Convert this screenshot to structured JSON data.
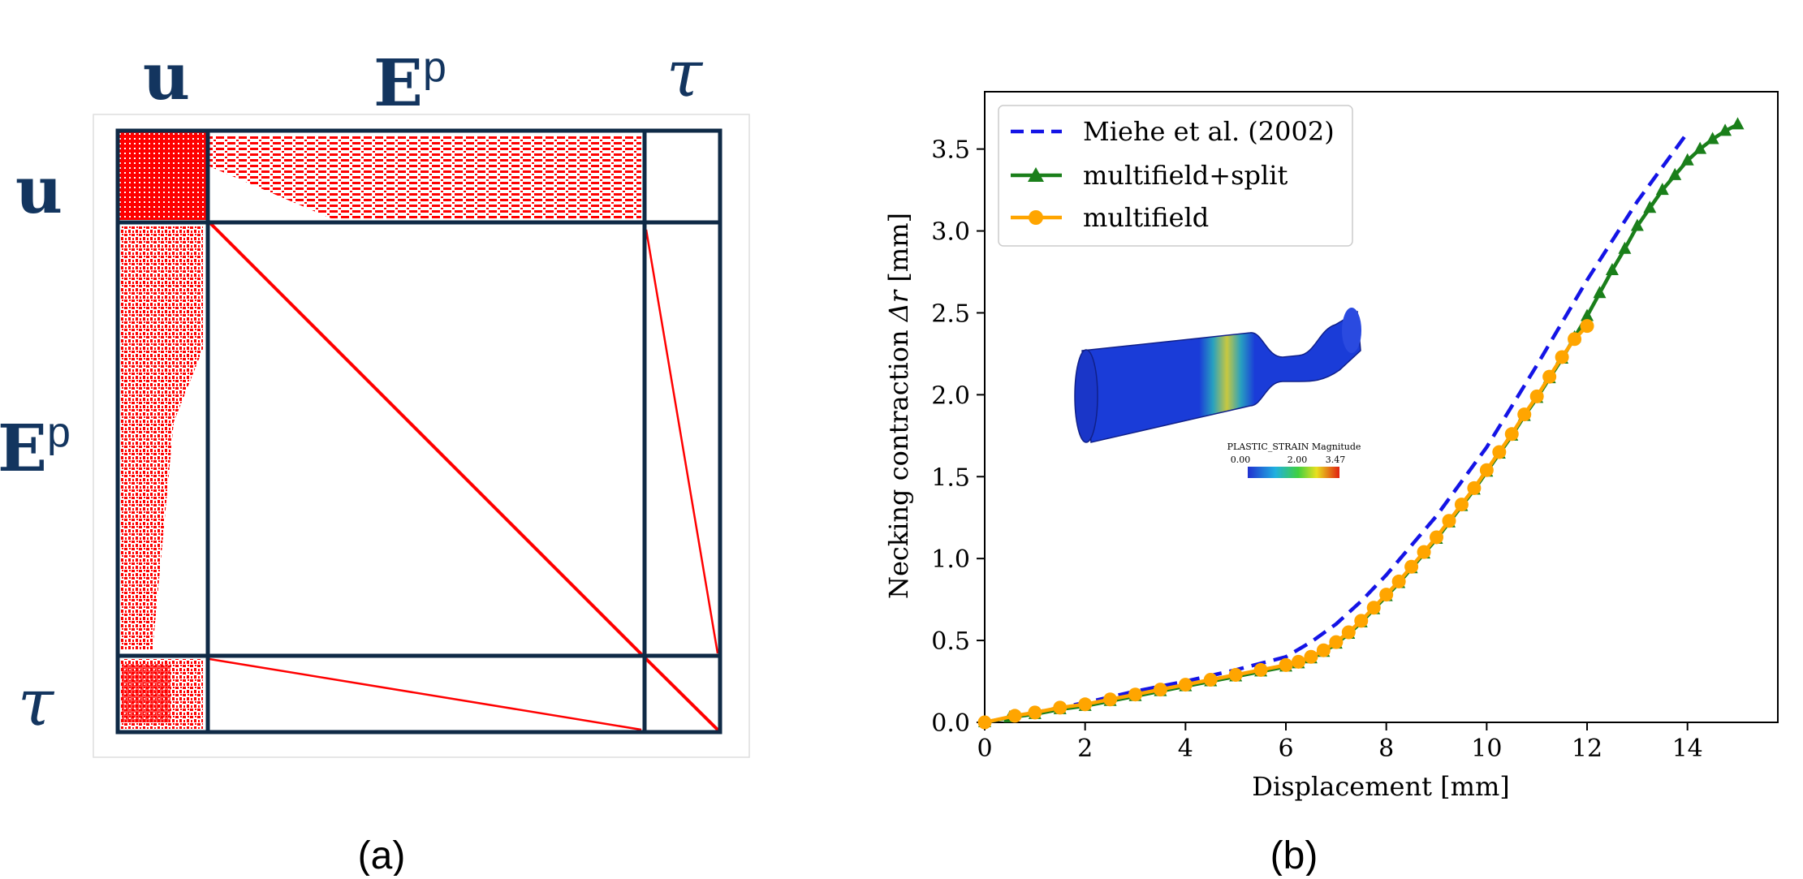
{
  "panel_a": {
    "label": "(a)",
    "top_labels": {
      "u": "u",
      "ep_base": "E",
      "ep_sup": "p",
      "tau": "τ"
    },
    "side_labels": {
      "u": "u",
      "ep_base": "E",
      "ep_sup": "p",
      "tau": "τ"
    },
    "sparsity_color": "#ff0000",
    "grid_color": "#0f2a46"
  },
  "panel_b": {
    "label": "(b)",
    "inset": {
      "colorbar_title": "PLASTIC_STRAIN Magnitude",
      "colorbar_ticks": [
        "0.00",
        "2.00",
        "3.47"
      ]
    }
  },
  "chart_data": {
    "type": "line",
    "xlabel": "Displacement [mm]",
    "ylabel_prefix": "Necking contraction ",
    "ylabel_symbol": "Δr",
    "ylabel_suffix": " [mm]",
    "xlim": [
      0,
      15.8
    ],
    "ylim": [
      0,
      3.85
    ],
    "xticks": [
      0,
      2,
      4,
      6,
      8,
      10,
      12,
      14
    ],
    "yticks": [
      0.0,
      0.5,
      1.0,
      1.5,
      2.0,
      2.5,
      3.0,
      3.5
    ],
    "xtick_labels": [
      "0",
      "2",
      "4",
      "6",
      "8",
      "10",
      "12",
      "14"
    ],
    "ytick_labels": [
      "0.0",
      "0.5",
      "1.0",
      "1.5",
      "2.0",
      "2.5",
      "3.0",
      "3.5"
    ],
    "legend_position": "top-left",
    "series": [
      {
        "name": "Miehe et al. (2002)",
        "style": "dashed",
        "color": "#1414e6",
        "marker": "none",
        "x": [
          0,
          1,
          2,
          3,
          4,
          5,
          6,
          6.5,
          7,
          7.5,
          8,
          9,
          10,
          11,
          12,
          13,
          14
        ],
        "y": [
          0.0,
          0.06,
          0.12,
          0.19,
          0.25,
          0.32,
          0.4,
          0.49,
          0.6,
          0.74,
          0.9,
          1.26,
          1.68,
          2.18,
          2.7,
          3.18,
          3.6
        ]
      },
      {
        "name": "multifield+split",
        "style": "solid",
        "color": "#1a7f1a",
        "marker": "triangle",
        "x": [
          0,
          0.5,
          1,
          1.5,
          2,
          2.5,
          3,
          3.5,
          4,
          4.5,
          5,
          5.5,
          6,
          6.25,
          6.5,
          6.75,
          7,
          7.25,
          7.5,
          7.75,
          8,
          8.25,
          8.5,
          8.75,
          9,
          9.25,
          9.5,
          9.75,
          10,
          10.25,
          10.5,
          10.75,
          11,
          11.25,
          11.5,
          11.75,
          12,
          12.25,
          12.5,
          12.75,
          13,
          13.25,
          13.5,
          13.75,
          14,
          14.25,
          14.5,
          14.75,
          15
        ],
        "y": [
          0.0,
          0.03,
          0.05,
          0.08,
          0.1,
          0.13,
          0.16,
          0.19,
          0.22,
          0.25,
          0.28,
          0.31,
          0.34,
          0.36,
          0.39,
          0.43,
          0.48,
          0.54,
          0.61,
          0.69,
          0.77,
          0.85,
          0.94,
          1.03,
          1.12,
          1.22,
          1.32,
          1.42,
          1.53,
          1.64,
          1.75,
          1.87,
          1.98,
          2.1,
          2.22,
          2.35,
          2.48,
          2.62,
          2.76,
          2.89,
          3.03,
          3.14,
          3.25,
          3.34,
          3.43,
          3.5,
          3.56,
          3.61,
          3.65
        ]
      },
      {
        "name": "multifield",
        "style": "solid",
        "color": "#ffa500",
        "marker": "circle",
        "x": [
          0,
          0.6,
          1,
          1.5,
          2,
          2.5,
          3,
          3.5,
          4,
          4.5,
          5,
          5.5,
          6,
          6.25,
          6.5,
          6.75,
          7,
          7.25,
          7.5,
          7.75,
          8,
          8.25,
          8.5,
          8.75,
          9,
          9.25,
          9.5,
          9.75,
          10,
          10.25,
          10.5,
          10.75,
          11,
          11.25,
          11.5,
          11.75,
          12
        ],
        "y": [
          0.0,
          0.04,
          0.06,
          0.09,
          0.11,
          0.14,
          0.17,
          0.2,
          0.23,
          0.26,
          0.29,
          0.32,
          0.35,
          0.37,
          0.4,
          0.44,
          0.49,
          0.55,
          0.62,
          0.7,
          0.78,
          0.86,
          0.95,
          1.04,
          1.13,
          1.23,
          1.33,
          1.43,
          1.54,
          1.65,
          1.76,
          1.88,
          1.99,
          2.11,
          2.23,
          2.34,
          2.42
        ]
      }
    ]
  }
}
